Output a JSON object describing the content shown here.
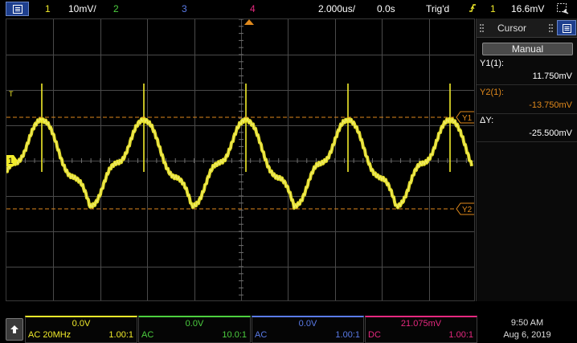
{
  "topbar": {
    "ch1_number": "1",
    "ch1_scale": "10mV/",
    "ch2_number": "2",
    "ch3_number": "3",
    "ch4_number": "4",
    "timebase": "2.000us/",
    "delay": "0.0s",
    "trigger_status": "Trig'd",
    "trigger_source": "1",
    "trigger_level": "16.6mV"
  },
  "screen": {
    "ch1_marker": "1",
    "trigger_marker": "T",
    "cursor_y1_label": "Y1",
    "cursor_y2_label": "Y2"
  },
  "panel": {
    "title": "Cursor",
    "mode_button": "Manual",
    "y1_label": "Y1(1):",
    "y1_value": "11.750mV",
    "y2_label": "Y2(1):",
    "y2_value": "-13.750mV",
    "dy_label": "ΔY:",
    "dy_value": "-25.500mV"
  },
  "channels": [
    {
      "offset": "0.0V",
      "coupling": "AC 20MHz",
      "probe": "1.00:1"
    },
    {
      "offset": "0.0V",
      "coupling": "AC",
      "probe": "10.0:1"
    },
    {
      "offset": "0.0V",
      "coupling": "AC",
      "probe": "1.00:1"
    },
    {
      "offset": "21.075mV",
      "coupling": "DC",
      "probe": "1.00:1"
    }
  ],
  "clock": {
    "time": "9:50 AM",
    "date": "Aug 6, 2019"
  },
  "colors": {
    "ch1": "#f2ec2a",
    "ch2": "#4ccf3f",
    "ch3": "#5a7be8",
    "ch4": "#e6287f",
    "cursor": "#e0891c",
    "grid": "#4a4a4a"
  },
  "icons": {
    "menu": "menu-icon",
    "trigger_edge": "rising-edge-icon",
    "acquire": "acquisition-icon",
    "scroll": "arrow-up-icon"
  }
}
